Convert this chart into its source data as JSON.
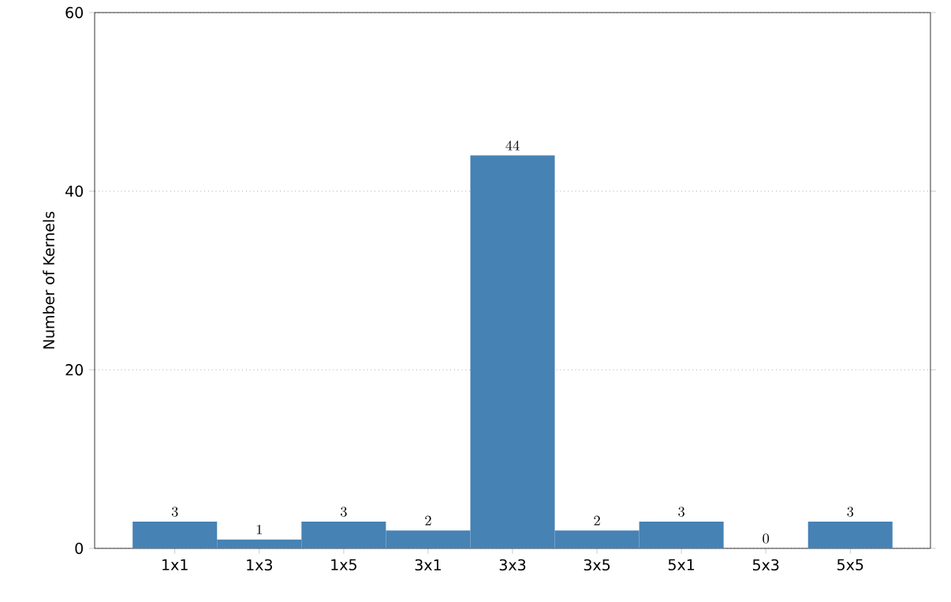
{
  "chart_data": {
    "type": "bar",
    "ylabel": "Number of Kernels",
    "categories": [
      "1x1",
      "1x3",
      "1x5",
      "3x1",
      "3x3",
      "3x5",
      "5x1",
      "5x3",
      "5x5"
    ],
    "values": [
      3,
      1,
      3,
      2,
      44,
      2,
      3,
      0,
      3
    ],
    "color": "#4682b4",
    "ylim": [
      0,
      60
    ],
    "yticks": [
      0,
      20,
      40,
      60
    ],
    "grid": "y",
    "data_labels": true
  }
}
